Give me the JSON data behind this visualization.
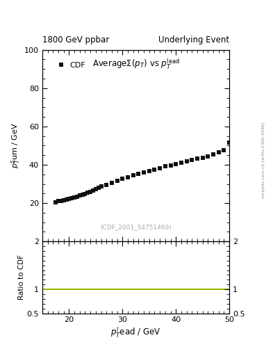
{
  "title_left": "1800 GeV ppbar",
  "title_right": "Underlying Event",
  "plot_title": "Average$\\Sigma(p_T)$ vs $p_T^{\\rm lead}$",
  "xlabel": "$p_T^l$ead / GeV",
  "ylabel_main": "$p_T^s$um / GeV",
  "ylabel_ratio": "Ratio to CDF",
  "watermark": "(CDF_2001_S4751469)",
  "arxiv_text": "mcplots.cern.ch [arXiv:1306.3436]",
  "legend_label": "CDF",
  "x_data": [
    17.5,
    18.0,
    18.5,
    19.0,
    19.5,
    20.0,
    20.5,
    21.0,
    21.5,
    22.0,
    22.5,
    23.0,
    23.5,
    24.0,
    24.5,
    25.0,
    25.5,
    26.0,
    27.0,
    28.0,
    29.0,
    30.0,
    31.0,
    32.0,
    33.0,
    34.0,
    35.0,
    36.0,
    37.0,
    38.0,
    39.0,
    40.0,
    41.0,
    42.0,
    43.0,
    44.0,
    45.0,
    46.0,
    47.0,
    48.0,
    49.0,
    50.0
  ],
  "y_data": [
    20.5,
    21.0,
    21.3,
    21.6,
    21.9,
    22.2,
    22.6,
    23.0,
    23.4,
    23.9,
    24.4,
    24.9,
    25.4,
    26.0,
    26.6,
    27.2,
    27.9,
    28.6,
    29.6,
    30.7,
    31.7,
    32.7,
    33.6,
    34.4,
    35.2,
    36.0,
    36.8,
    37.6,
    38.3,
    39.1,
    39.8,
    40.5,
    41.2,
    41.9,
    42.5,
    43.2,
    43.8,
    44.5,
    45.5,
    46.7,
    47.8,
    51.5
  ],
  "xlim": [
    15,
    50
  ],
  "ylim_main": [
    0,
    100
  ],
  "ylim_ratio": [
    0.5,
    2.0
  ],
  "xticks": [
    20,
    30,
    40,
    50
  ],
  "yticks_main": [
    20,
    40,
    60,
    80,
    100
  ],
  "yticks_ratio": [
    0.5,
    1.0,
    2.0
  ],
  "marker_color": "#111111",
  "marker_size": 4,
  "ratio_line_color": "#99bb00",
  "background_color": "#ffffff"
}
